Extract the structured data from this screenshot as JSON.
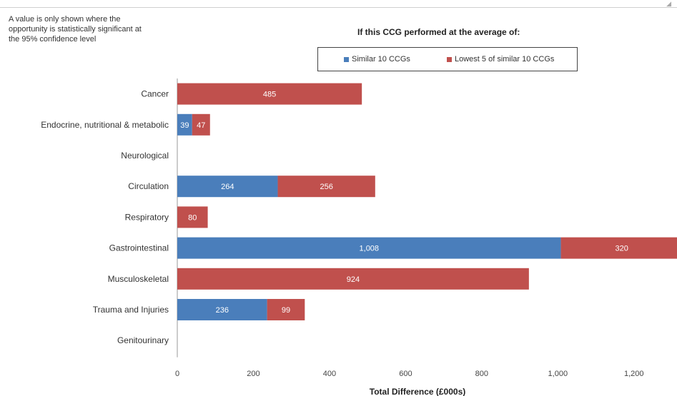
{
  "note": "A value is only shown where the opportunity is statistically significant at the 95% confidence level",
  "legend": {
    "title": "If this CCG performed at the average of:",
    "items": [
      {
        "label": "Similar 10 CCGs",
        "color": "#4a7ebb"
      },
      {
        "label": "Lowest 5 of similar 10 CCGs",
        "color": "#c0504d"
      }
    ]
  },
  "chart_data": {
    "type": "bar",
    "orientation": "horizontal",
    "stacked": true,
    "categories": [
      "Cancer",
      "Endocrine, nutritional & metabolic",
      "Neurological",
      "Circulation",
      "Respiratory",
      "Gastrointestinal",
      "Musculoskeletal",
      "Trauma and Injuries",
      "Genitourinary"
    ],
    "series": [
      {
        "name": "Similar 10 CCGs",
        "color": "#4a7ebb",
        "values": [
          0,
          39,
          0,
          264,
          0,
          1008,
          0,
          236,
          0
        ],
        "labels": [
          "",
          "39",
          "",
          "264",
          "",
          "1,008",
          "",
          "236",
          ""
        ]
      },
      {
        "name": "Lowest 5 of similar 10 CCGs",
        "color": "#c0504d",
        "values": [
          485,
          47,
          0,
          256,
          80,
          320,
          924,
          99,
          0
        ],
        "labels": [
          "485",
          "47",
          "",
          "256",
          "80",
          "320",
          "924",
          "99",
          ""
        ]
      }
    ],
    "xlabel": "Total Difference (£000s)",
    "xlim": [
      0,
      1300
    ],
    "xticks": [
      0,
      200,
      400,
      600,
      800,
      1000,
      1200
    ],
    "xtick_labels": [
      "0",
      "200",
      "400",
      "600",
      "800",
      "1,000",
      "1,200"
    ],
    "grid": false,
    "legend_position": "top-right"
  }
}
